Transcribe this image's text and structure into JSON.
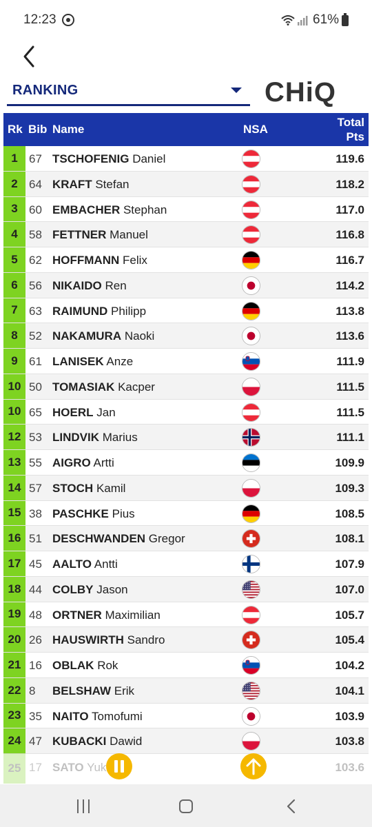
{
  "status_bar": {
    "time": "12:23",
    "battery": "61%",
    "icons": [
      "whatsapp-icon",
      "wifi-icon",
      "signal-icon",
      "battery-icon"
    ]
  },
  "header": {
    "back_icon": "back-icon",
    "select_value": "RANKING",
    "logo_text": "CHiQ"
  },
  "table": {
    "columns": {
      "rk": "Rk",
      "bib": "Bib",
      "name": "Name",
      "nsa": "NSA",
      "pts_line1": "Total",
      "pts_line2": "Pts"
    },
    "rows": [
      {
        "rk": "1",
        "bib": "67",
        "last": "TSCHOFENIG",
        "first": "Daniel",
        "nsa": "AUT",
        "pts": "119.6"
      },
      {
        "rk": "2",
        "bib": "64",
        "last": "KRAFT",
        "first": "Stefan",
        "nsa": "AUT",
        "pts": "118.2"
      },
      {
        "rk": "3",
        "bib": "60",
        "last": "EMBACHER",
        "first": "Stephan",
        "nsa": "AUT",
        "pts": "117.0"
      },
      {
        "rk": "4",
        "bib": "58",
        "last": "FETTNER",
        "first": "Manuel",
        "nsa": "AUT",
        "pts": "116.8"
      },
      {
        "rk": "5",
        "bib": "62",
        "last": "HOFFMANN",
        "first": "Felix",
        "nsa": "GER",
        "pts": "116.7"
      },
      {
        "rk": "6",
        "bib": "56",
        "last": "NIKAIDO",
        "first": "Ren",
        "nsa": "JPN",
        "pts": "114.2"
      },
      {
        "rk": "7",
        "bib": "63",
        "last": "RAIMUND",
        "first": "Philipp",
        "nsa": "GER",
        "pts": "113.8"
      },
      {
        "rk": "8",
        "bib": "52",
        "last": "NAKAMURA",
        "first": "Naoki",
        "nsa": "JPN",
        "pts": "113.6"
      },
      {
        "rk": "9",
        "bib": "61",
        "last": "LANISEK",
        "first": "Anze",
        "nsa": "SLO",
        "pts": "111.9"
      },
      {
        "rk": "10",
        "bib": "50",
        "last": "TOMASIAK",
        "first": "Kacper",
        "nsa": "POL",
        "pts": "111.5"
      },
      {
        "rk": "10",
        "bib": "65",
        "last": "HOERL",
        "first": "Jan",
        "nsa": "AUT",
        "pts": "111.5"
      },
      {
        "rk": "12",
        "bib": "53",
        "last": "LINDVIK",
        "first": "Marius",
        "nsa": "NOR",
        "pts": "111.1"
      },
      {
        "rk": "13",
        "bib": "55",
        "last": "AIGRO",
        "first": "Artti",
        "nsa": "EST",
        "pts": "109.9"
      },
      {
        "rk": "14",
        "bib": "57",
        "last": "STOCH",
        "first": "Kamil",
        "nsa": "POL",
        "pts": "109.3"
      },
      {
        "rk": "15",
        "bib": "38",
        "last": "PASCHKE",
        "first": "Pius",
        "nsa": "GER",
        "pts": "108.5"
      },
      {
        "rk": "16",
        "bib": "51",
        "last": "DESCHWANDEN",
        "first": "Gregor",
        "nsa": "SUI",
        "pts": "108.1"
      },
      {
        "rk": "17",
        "bib": "45",
        "last": "AALTO",
        "first": "Antti",
        "nsa": "FIN",
        "pts": "107.9"
      },
      {
        "rk": "18",
        "bib": "44",
        "last": "COLBY",
        "first": "Jason",
        "nsa": "USA",
        "pts": "107.0"
      },
      {
        "rk": "19",
        "bib": "48",
        "last": "ORTNER",
        "first": "Maximilian",
        "nsa": "AUT",
        "pts": "105.7"
      },
      {
        "rk": "20",
        "bib": "26",
        "last": "HAUSWIRTH",
        "first": "Sandro",
        "nsa": "SUI",
        "pts": "105.4"
      },
      {
        "rk": "21",
        "bib": "16",
        "last": "OBLAK",
        "first": "Rok",
        "nsa": "SLO",
        "pts": "104.2"
      },
      {
        "rk": "22",
        "bib": "8",
        "last": "BELSHAW",
        "first": "Erik",
        "nsa": "USA",
        "pts": "104.1"
      },
      {
        "rk": "23",
        "bib": "35",
        "last": "NAITO",
        "first": "Tomofumi",
        "nsa": "JPN",
        "pts": "103.9"
      },
      {
        "rk": "24",
        "bib": "47",
        "last": "KUBACKI",
        "first": "Dawid",
        "nsa": "POL",
        "pts": "103.8"
      }
    ],
    "partial_row": {
      "rk": "25",
      "bib": "17",
      "last": "SATO",
      "first": "Yuk",
      "pts": "103.6"
    }
  },
  "controls": {
    "pause_icon": "pause-icon",
    "scroll_top_icon": "arrow-up-icon"
  },
  "colors": {
    "header_bg": "#1a36a8",
    "rank_bg": "#7ed321",
    "accent": "#f5b800",
    "select_underline": "#14287a"
  }
}
